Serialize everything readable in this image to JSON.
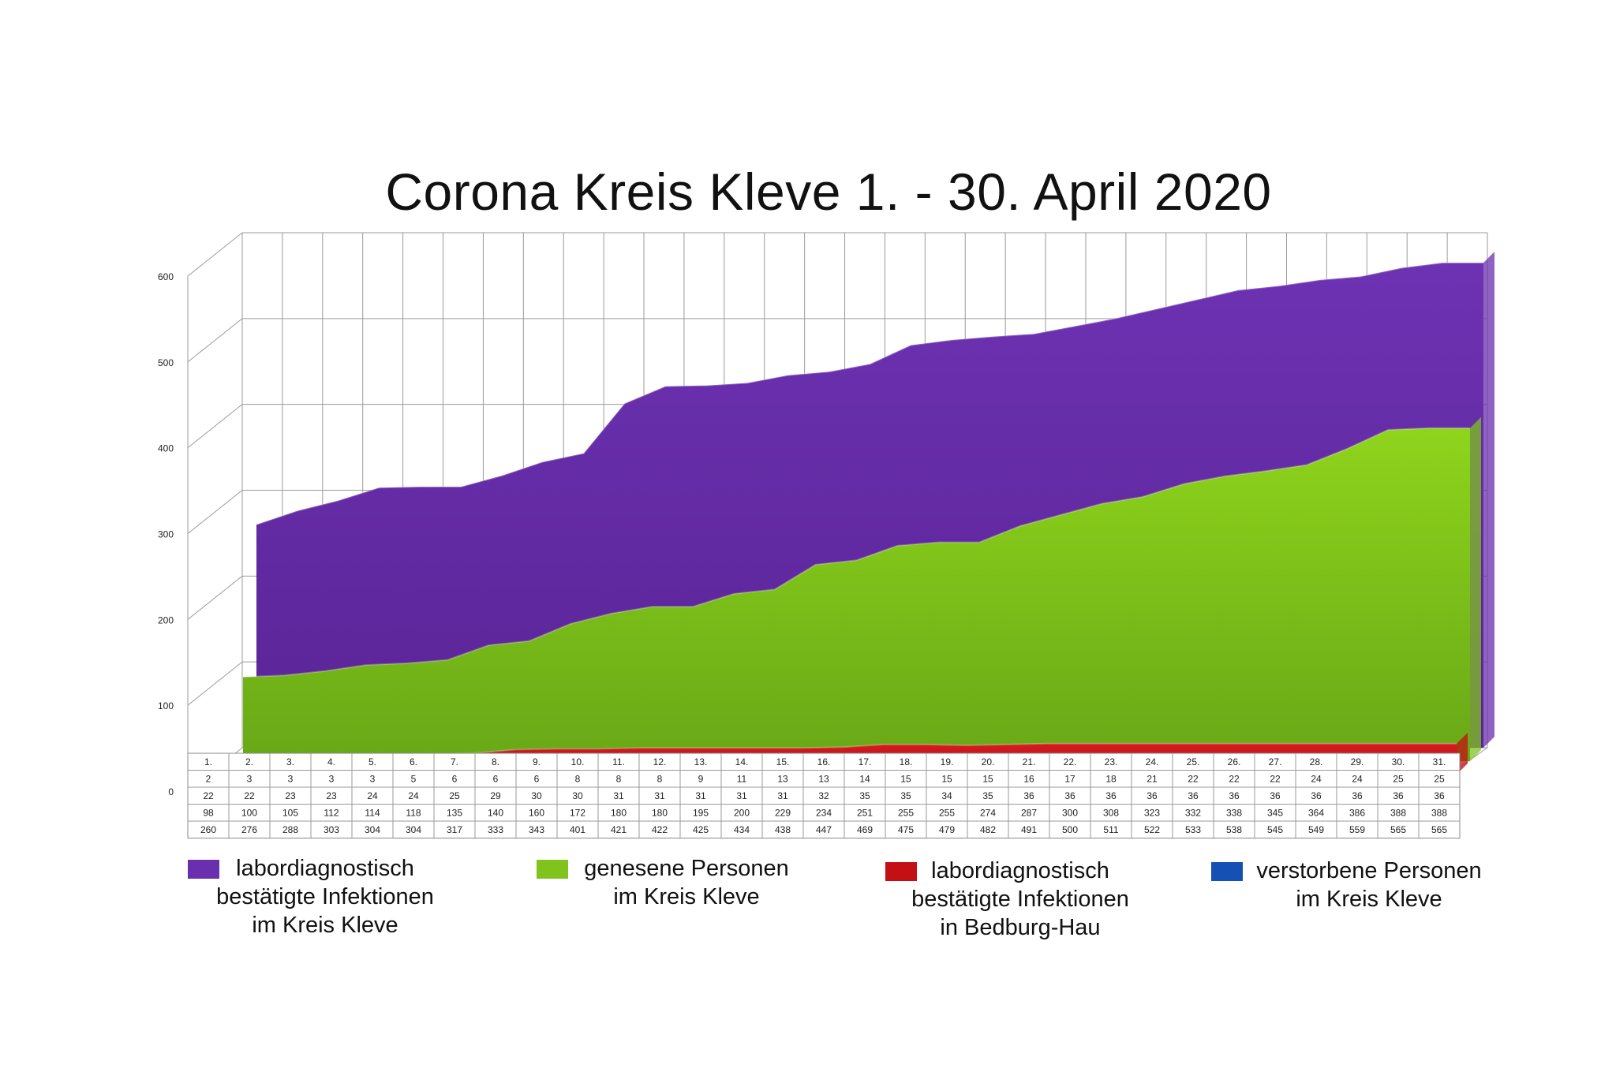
{
  "colors": {
    "background": "#ffffff",
    "confirmed_kleve": "#6a2fae",
    "recovered_kleve": "#7fc31c",
    "confirmed_bedburg": "#c40f14",
    "deaths_kleve": "#1550b5",
    "grid": "#9a9a9a"
  },
  "chart_data": {
    "type": "area",
    "title": "Corona Kreis Kleve 1. - 30. April 2020",
    "xlabel": "",
    "ylabel": "",
    "ylim": [
      0,
      600
    ],
    "y_ticks": [
      "0",
      "100",
      "200",
      "300",
      "400",
      "500",
      "600"
    ],
    "grid": true,
    "legend_position": "bottom",
    "categories": [
      "1.",
      "2.",
      "3.",
      "4.",
      "5.",
      "6.",
      "7.",
      "8.",
      "9.",
      "10.",
      "11.",
      "12.",
      "13.",
      "14.",
      "15.",
      "16.",
      "17.",
      "18.",
      "19.",
      "20.",
      "21.",
      "22.",
      "23.",
      "24.",
      "25.",
      "26.",
      "27.",
      "28.",
      "29.",
      "30.",
      "31."
    ],
    "series": [
      {
        "key": "deaths_kleve",
        "legend_lines": [
          "verstorbene Personen",
          "im Kreis Kleve"
        ],
        "color": "#1550b5",
        "values": [
          2,
          3,
          3,
          3,
          3,
          5,
          6,
          6,
          6,
          8,
          8,
          8,
          9,
          11,
          13,
          13,
          14,
          15,
          15,
          15,
          16,
          17,
          18,
          21,
          22,
          22,
          22,
          24,
          24,
          25,
          25
        ]
      },
      {
        "key": "confirmed_bedburg",
        "legend_lines": [
          "labordiagnostisch",
          "bestätigte Infektionen",
          "in Bedburg-Hau"
        ],
        "color": "#c40f14",
        "values": [
          22,
          22,
          23,
          23,
          24,
          24,
          25,
          29,
          30,
          30,
          31,
          31,
          31,
          31,
          31,
          32,
          35,
          35,
          34,
          35,
          36,
          36,
          36,
          36,
          36,
          36,
          36,
          36,
          36,
          36,
          36
        ]
      },
      {
        "key": "recovered_kleve",
        "legend_lines": [
          "genesene Personen",
          "im Kreis Kleve"
        ],
        "color": "#7fc31c",
        "values": [
          98,
          100,
          105,
          112,
          114,
          118,
          135,
          140,
          160,
          172,
          180,
          180,
          195,
          200,
          229,
          234,
          251,
          255,
          255,
          274,
          287,
          300,
          308,
          323,
          332,
          338,
          345,
          364,
          386,
          388,
          388
        ]
      },
      {
        "key": "confirmed_kleve",
        "legend_lines": [
          "labordiagnostisch",
          "bestätigte Infektionen",
          "im Kreis Kleve"
        ],
        "color": "#6a2fae",
        "values": [
          260,
          276,
          288,
          303,
          304,
          304,
          317,
          333,
          343,
          401,
          421,
          422,
          425,
          434,
          438,
          447,
          469,
          475,
          479,
          482,
          491,
          500,
          511,
          522,
          533,
          538,
          545,
          549,
          559,
          565,
          565
        ]
      }
    ]
  }
}
